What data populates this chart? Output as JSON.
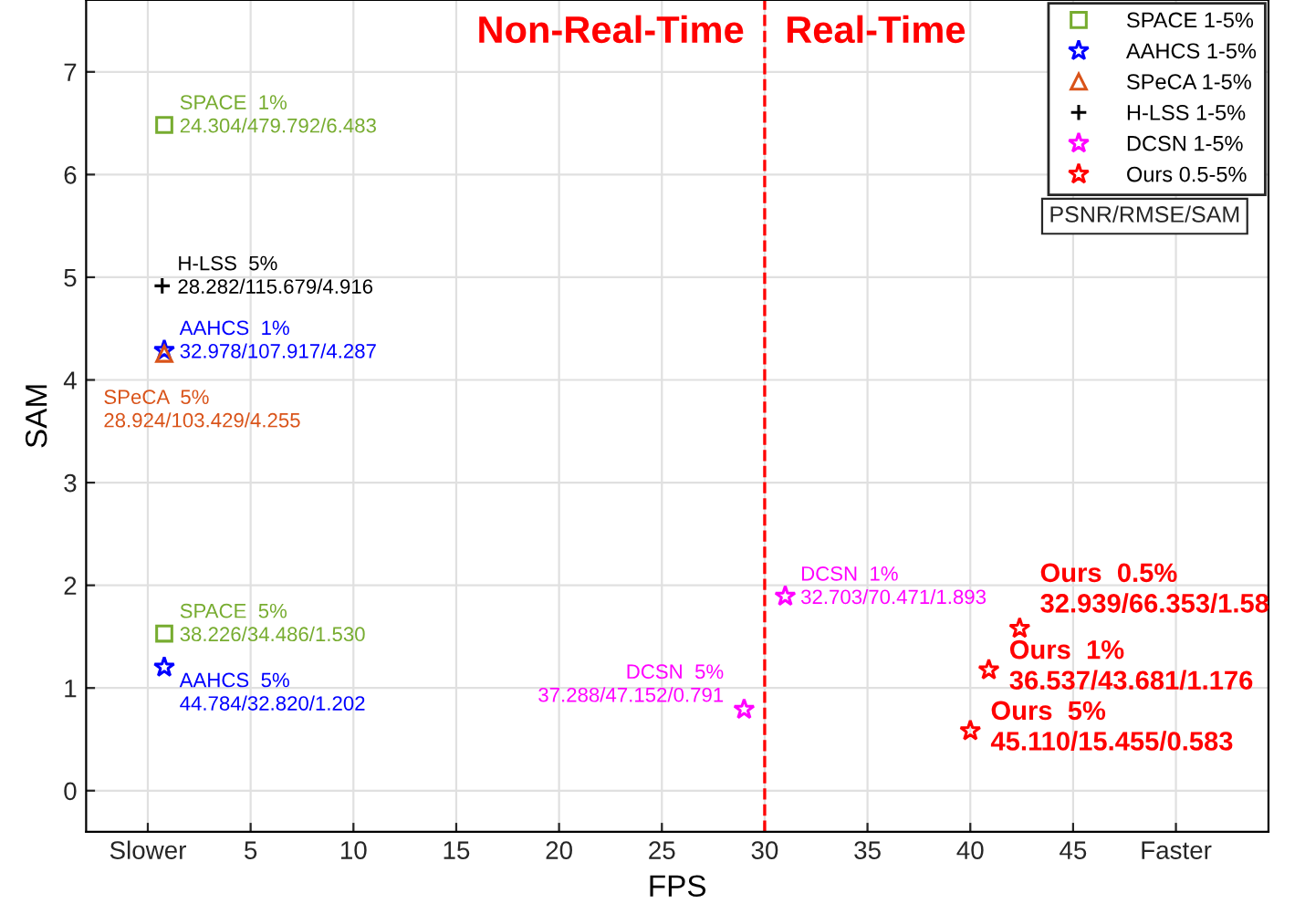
{
  "chart_data": {
    "type": "scatter",
    "xlabel": "FPS",
    "ylabel": "SAM",
    "xlim": [
      -3,
      54.5
    ],
    "ylim": [
      -0.4,
      7.7
    ],
    "xticks": [
      {
        "value": 0,
        "label": "Slower"
      },
      5,
      10,
      15,
      20,
      25,
      30,
      35,
      40,
      45,
      {
        "value": 50,
        "label": "Faster"
      }
    ],
    "yticks": [
      0,
      1,
      2,
      3,
      4,
      5,
      6,
      7
    ],
    "grid": true,
    "legend": "top right",
    "legend_title": "PSNR/RMSE/SAM",
    "ref_lines": [
      {
        "axis": "x",
        "value": 30,
        "label": null,
        "color": "#ff0000",
        "line_style": "dashed"
      }
    ],
    "annotations": [
      "Non-Real-Time",
      "Real-Time"
    ],
    "series": [
      {
        "name": "SPACE 1-5%",
        "color": "#77ac30",
        "marker": "square",
        "x": [
          0.8,
          0.8
        ],
        "values": [
          6.483,
          1.53
        ],
        "value_labels": [
          "SPACE  1%\n24.304/479.792/6.483",
          "SPACE  5%\n38.226/34.486/1.530"
        ]
      },
      {
        "name": "AAHCS 1-5%",
        "color": "#0000ff",
        "marker": "star",
        "x": [
          0.8,
          0.8
        ],
        "values": [
          4.287,
          1.202
        ],
        "value_labels": [
          "AAHCS  1%\n32.978/107.917/4.287",
          "AAHCS  5%\n44.784/32.820/1.202"
        ]
      },
      {
        "name": "SPeCA 1-5%",
        "color": "#d95319",
        "marker": "triangle",
        "x": [
          0.8
        ],
        "values": [
          4.255
        ],
        "value_labels": [
          "SPeCA  5%\n28.924/103.429/4.255"
        ]
      },
      {
        "name": "H-LSS 1-5%",
        "color": "#000000",
        "marker": "cross",
        "x": [
          0.7
        ],
        "values": [
          4.916
        ],
        "value_labels": [
          "H-LSS  5%\n28.282/115.679/4.916"
        ]
      },
      {
        "name": "DCSN 1-5%",
        "color": "#ff00ff",
        "marker": "star",
        "x": [
          31.0,
          29.0
        ],
        "values": [
          1.893,
          0.791
        ],
        "value_labels": [
          "DCSN  1%\n32.703/70.471/1.893",
          "DCSN  5%\n37.288/47.152/0.791"
        ]
      },
      {
        "name": "Ours 0.5-5%",
        "color": "#ff0000",
        "marker": "star",
        "x": [
          42.4,
          40.9,
          40.0
        ],
        "values": [
          1.58,
          1.176,
          0.583
        ],
        "value_labels": [
          "Ours  0.5%\n32.939/66.353/1.58",
          "Ours  1%\n36.537/43.681/1.176",
          "Ours  5%\n45.110/15.455/0.583"
        ]
      }
    ]
  }
}
